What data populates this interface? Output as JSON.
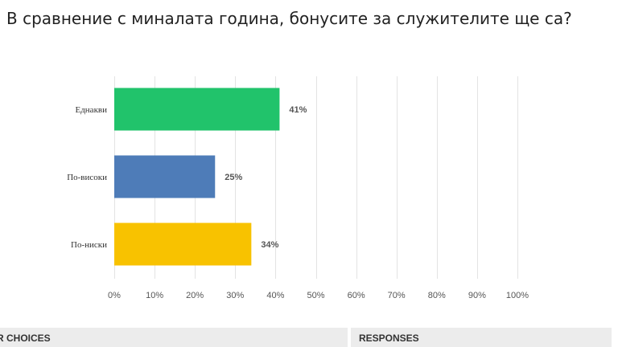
{
  "question": "В сравнение с миналата година, бонусите за служителите ще са?",
  "chart_data": {
    "type": "bar",
    "orientation": "horizontal",
    "categories": [
      "Еднакви",
      "По-високи",
      "По-ниски"
    ],
    "values": [
      41,
      25,
      34
    ],
    "value_labels": [
      "41%",
      "25%",
      "34%"
    ],
    "colors": [
      "#21c36b",
      "#4e7cb8",
      "#f8c200"
    ],
    "xlim": [
      0,
      100
    ],
    "xticks": [
      "0%",
      "10%",
      "20%",
      "30%",
      "40%",
      "50%",
      "60%",
      "70%",
      "80%",
      "90%",
      "100%"
    ],
    "grid": true
  },
  "table": {
    "col_choices": "R CHOICES",
    "col_responses": "RESPONSES"
  }
}
